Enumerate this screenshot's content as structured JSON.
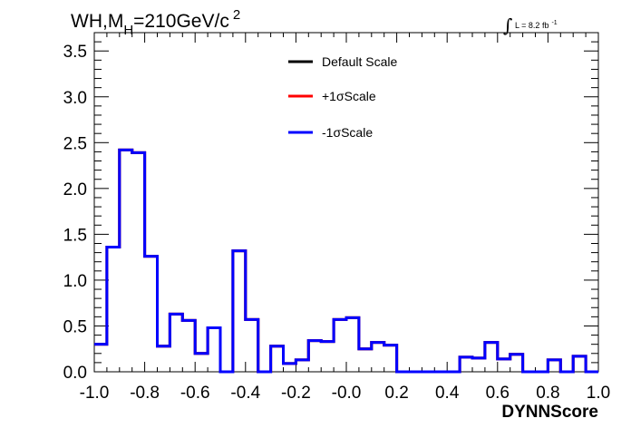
{
  "chart_data": {
    "type": "histogram-step",
    "title_main": "WH,M",
    "title_sub": "H",
    "title_rest": "=210GeV/c",
    "title_sup": "2",
    "lumi_text": "L = 8.2 fb",
    "lumi_sup": "-1",
    "lumi_integral": "∫",
    "xlabel": "DYNNScore",
    "xlim": [
      -1.0,
      1.0
    ],
    "ylim": [
      0,
      3.7
    ],
    "xticks": [
      "-1.0",
      "-0.8",
      "-0.6",
      "-0.4",
      "-0.2",
      "-0.0",
      "0.2",
      "0.4",
      "0.6",
      "0.8",
      "1.0"
    ],
    "yticks": [
      "0.0",
      "0.5",
      "1.0",
      "1.5",
      "2.0",
      "2.5",
      "3.0",
      "3.5"
    ],
    "bin_width": 0.05,
    "bin_low_edges": [
      -1.0,
      -0.95,
      -0.9,
      -0.85,
      -0.8,
      -0.75,
      -0.7,
      -0.65,
      -0.6,
      -0.55,
      -0.5,
      -0.45,
      -0.4,
      -0.35,
      -0.3,
      -0.25,
      -0.2,
      -0.15,
      -0.1,
      -0.05,
      0.0,
      0.05,
      0.1,
      0.15,
      0.2,
      0.25,
      0.3,
      0.35,
      0.4,
      0.45,
      0.5,
      0.55,
      0.6,
      0.65,
      0.7,
      0.75,
      0.8,
      0.85,
      0.9,
      0.95
    ],
    "series": [
      {
        "name": "Default Scale",
        "color": "#000000",
        "values": [
          0.3,
          1.36,
          2.42,
          2.39,
          1.26,
          0.28,
          0.63,
          0.56,
          0.2,
          0.48,
          0.0,
          1.32,
          0.57,
          0.0,
          0.28,
          0.09,
          0.13,
          0.34,
          0.33,
          0.57,
          0.59,
          0.25,
          0.32,
          0.29,
          0.0,
          0.0,
          0.0,
          0.0,
          0.0,
          0.16,
          0.15,
          0.32,
          0.14,
          0.19,
          0.0,
          0.0,
          0.13,
          0.0,
          0.17,
          0.0
        ]
      },
      {
        "name": "+1σScale",
        "color": "#ff0000",
        "values": [
          0.3,
          1.36,
          2.42,
          2.39,
          1.26,
          0.28,
          0.63,
          0.56,
          0.2,
          0.48,
          0.0,
          1.32,
          0.57,
          0.0,
          0.28,
          0.09,
          0.13,
          0.34,
          0.33,
          0.57,
          0.59,
          0.25,
          0.32,
          0.29,
          0.0,
          0.0,
          0.0,
          0.0,
          0.0,
          0.16,
          0.15,
          0.32,
          0.14,
          0.19,
          0.0,
          0.0,
          0.13,
          0.0,
          0.17,
          0.0
        ]
      },
      {
        "name": "-1σScale",
        "color": "#0000ff",
        "values": [
          0.3,
          1.36,
          2.42,
          2.39,
          1.26,
          0.28,
          0.63,
          0.56,
          0.2,
          0.48,
          0.0,
          1.32,
          0.57,
          0.0,
          0.28,
          0.09,
          0.13,
          0.34,
          0.33,
          0.57,
          0.59,
          0.25,
          0.32,
          0.29,
          0.0,
          0.0,
          0.0,
          0.0,
          0.0,
          0.16,
          0.15,
          0.32,
          0.14,
          0.19,
          0.0,
          0.0,
          0.13,
          0.0,
          0.17,
          0.0
        ]
      }
    ],
    "legend_position": "top-center",
    "grid": false
  }
}
